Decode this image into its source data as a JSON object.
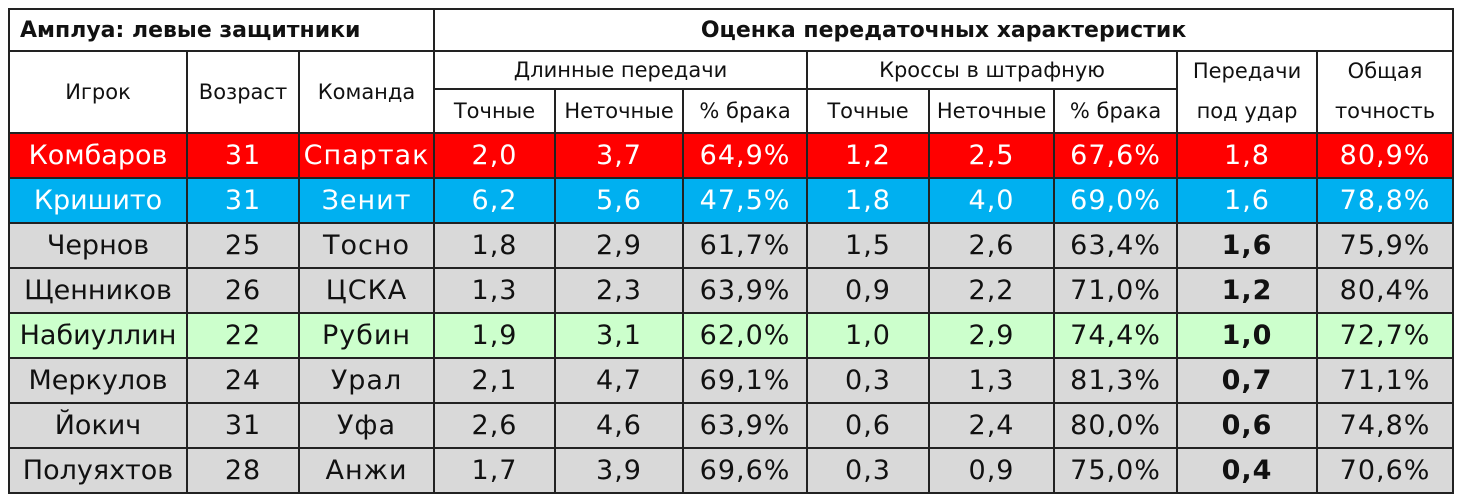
{
  "header": {
    "role": "Амплуа: левые защитники",
    "section": "Оценка передаточных характеристик"
  },
  "columns": {
    "player": "Игрок",
    "age": "Возраст",
    "team": "Команда",
    "long": {
      "title": "Длинные передачи",
      "accurate": "Точные",
      "inaccurate": "Неточные",
      "fail": "% брака"
    },
    "crosses": {
      "title": "Кроссы в штрафную",
      "accurate": "Точные",
      "inaccurate": "Неточные",
      "fail": "% брака"
    },
    "key": [
      "Передачи",
      "под удар"
    ],
    "total": [
      "Общая",
      "точность"
    ]
  },
  "rows": [
    [
      "Комбаров",
      "31",
      "Спартак",
      "2,0",
      "3,7",
      "64,9%",
      "1,2",
      "2,5",
      "67,6%",
      "1,8",
      "80,9%"
    ],
    [
      "Кришито",
      "31",
      "Зенит",
      "6,2",
      "5,6",
      "47,5%",
      "1,8",
      "4,0",
      "69,0%",
      "1,6",
      "78,8%"
    ],
    [
      "Чернов",
      "25",
      "Тосно",
      "1,8",
      "2,9",
      "61,7%",
      "1,5",
      "2,6",
      "63,4%",
      "1,6",
      "75,9%"
    ],
    [
      "Щенников",
      "26",
      "ЦСКА",
      "1,3",
      "2,3",
      "63,9%",
      "0,9",
      "2,2",
      "71,0%",
      "1,2",
      "80,4%"
    ],
    [
      "Набиуллин",
      "22",
      "Рубин",
      "1,9",
      "3,1",
      "62,0%",
      "1,0",
      "2,9",
      "74,4%",
      "1,0",
      "72,7%"
    ],
    [
      "Меркулов",
      "24",
      "Урал",
      "2,1",
      "4,7",
      "69,1%",
      "0,3",
      "1,3",
      "81,3%",
      "0,7",
      "71,1%"
    ],
    [
      "Йокич",
      "31",
      "Уфа",
      "2,6",
      "4,6",
      "63,9%",
      "0,6",
      "2,4",
      "80,0%",
      "0,6",
      "74,8%"
    ],
    [
      "Полуяхтов",
      "28",
      "Анжи",
      "1,7",
      "3,9",
      "69,6%",
      "0,3",
      "0,9",
      "75,0%",
      "0,4",
      "70,6%"
    ]
  ]
}
